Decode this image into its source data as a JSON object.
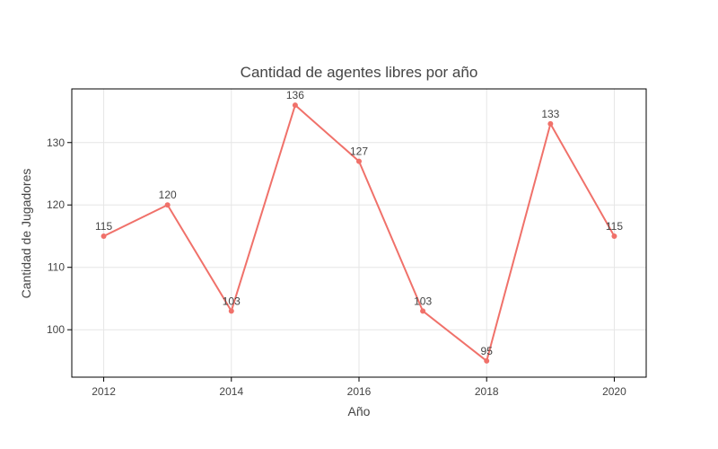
{
  "chart_data": {
    "type": "line",
    "title": "Cantidad de agentes libres por año",
    "xlabel": "Año",
    "ylabel": "Cantidad de Jugadores",
    "x": [
      2012,
      2013,
      2014,
      2015,
      2016,
      2017,
      2018,
      2019,
      2020
    ],
    "series": [
      {
        "values": [
          115,
          120,
          103,
          136,
          127,
          103,
          95,
          133,
          115
        ],
        "color": "#f0716a"
      }
    ],
    "xlim": [
      2011.5,
      2020.5
    ],
    "ylim": [
      92.4,
      138.6
    ],
    "x_ticks": [
      2012,
      2014,
      2016,
      2018,
      2020
    ],
    "y_ticks": [
      100,
      110,
      120,
      130
    ],
    "grid": true,
    "legend": "none",
    "data_labels": true
  }
}
